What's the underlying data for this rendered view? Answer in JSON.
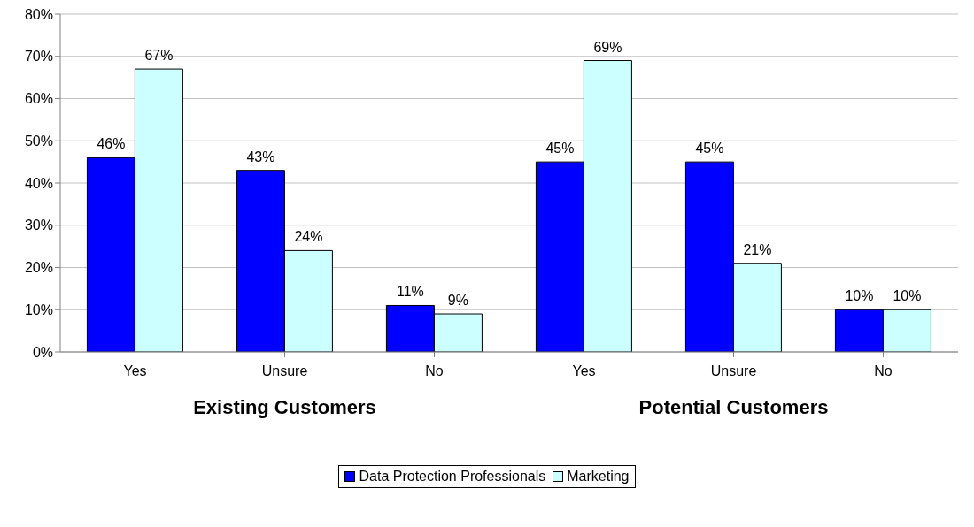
{
  "chart_data": {
    "type": "bar",
    "categories": [
      "Yes",
      "Unsure",
      "No",
      "Yes",
      "Unsure",
      "No"
    ],
    "series": [
      {
        "name": "Data Protection Professionals",
        "color": "#0000ff",
        "values": [
          46,
          43,
          11,
          45,
          45,
          10
        ],
        "value_labels": [
          "46%",
          "43%",
          "11%",
          "45%",
          "45%",
          "10%"
        ]
      },
      {
        "name": "Marketing",
        "color": "#ccffff",
        "values": [
          67,
          24,
          9,
          69,
          21,
          10
        ],
        "value_labels": [
          "67%",
          "24%",
          "9%",
          "69%",
          "21%",
          "10%"
        ]
      }
    ],
    "ylim": [
      0,
      80
    ],
    "yticks": [
      {
        "value": 0,
        "label": "0%"
      },
      {
        "value": 10,
        "label": "10%"
      },
      {
        "value": 20,
        "label": "20%"
      },
      {
        "value": 30,
        "label": "30%"
      },
      {
        "value": 40,
        "label": "40%"
      },
      {
        "value": 50,
        "label": "50%"
      },
      {
        "value": 60,
        "label": "60%"
      },
      {
        "value": 70,
        "label": "70%"
      },
      {
        "value": 80,
        "label": "80%"
      }
    ],
    "grid": "y",
    "legend": "bottom",
    "annotations": [
      "Existing Customers",
      "Potential Customers"
    ]
  }
}
